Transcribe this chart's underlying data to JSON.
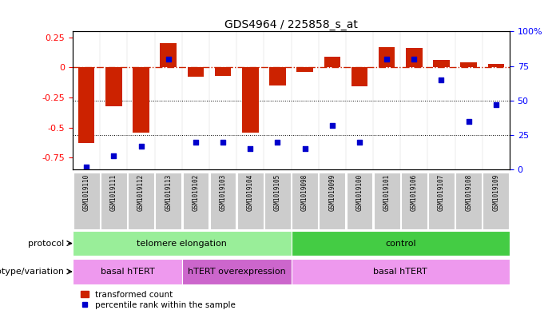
{
  "title": "GDS4964 / 225858_s_at",
  "samples": [
    "GSM1019110",
    "GSM1019111",
    "GSM1019112",
    "GSM1019113",
    "GSM1019102",
    "GSM1019103",
    "GSM1019104",
    "GSM1019105",
    "GSM1019098",
    "GSM1019099",
    "GSM1019100",
    "GSM1019101",
    "GSM1019106",
    "GSM1019107",
    "GSM1019108",
    "GSM1019109"
  ],
  "bar_values": [
    -0.63,
    -0.32,
    -0.54,
    0.2,
    -0.08,
    -0.07,
    -0.54,
    -0.15,
    -0.04,
    0.09,
    -0.16,
    0.17,
    0.16,
    0.06,
    0.04,
    0.03
  ],
  "dot_values": [
    2,
    10,
    17,
    80,
    20,
    20,
    15,
    20,
    15,
    32,
    20,
    80,
    80,
    65,
    35,
    47
  ],
  "ylim_left": [
    -0.85,
    0.3
  ],
  "ylim_right": [
    0,
    100
  ],
  "bar_color": "#cc2200",
  "dot_color": "#0000cc",
  "hline_color": "#cc2200",
  "protocol_groups": [
    {
      "label": "telomere elongation",
      "start": 0,
      "end": 8,
      "color": "#99ee99"
    },
    {
      "label": "control",
      "start": 8,
      "end": 16,
      "color": "#44cc44"
    }
  ],
  "genotype_groups": [
    {
      "label": "basal hTERT",
      "start": 0,
      "end": 4,
      "color": "#ee99ee"
    },
    {
      "label": "hTERT overexpression",
      "start": 4,
      "end": 8,
      "color": "#cc66cc"
    },
    {
      "label": "basal hTERT",
      "start": 8,
      "end": 16,
      "color": "#ee99ee"
    }
  ],
  "protocol_label": "protocol",
  "genotype_label": "genotype/variation",
  "legend_bar": "transformed count",
  "legend_dot": "percentile rank within the sample",
  "yticks_left": [
    -0.75,
    -0.5,
    -0.25,
    0,
    0.25
  ],
  "yticks_right": [
    0,
    25,
    50,
    75,
    100
  ],
  "background_color": "#ffffff"
}
